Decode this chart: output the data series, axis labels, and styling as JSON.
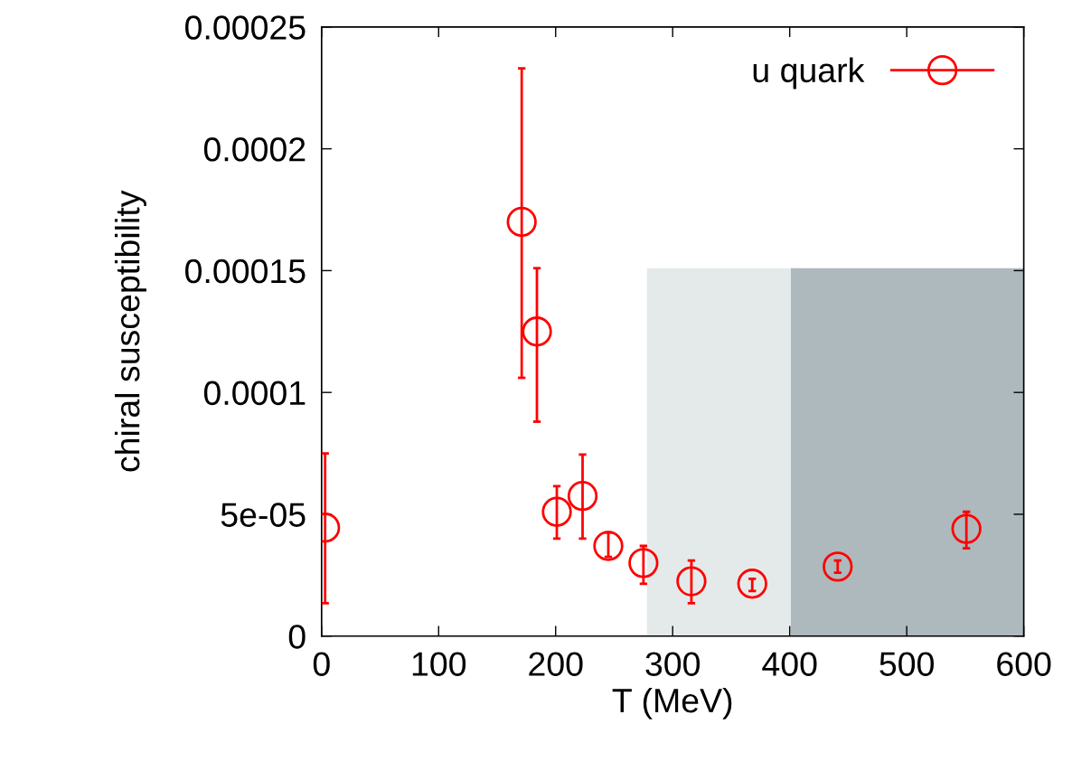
{
  "chart_data": {
    "type": "scatter",
    "xlabel": "T (MeV)",
    "ylabel": "chiral susceptibility",
    "xlim": [
      0,
      600
    ],
    "xticks": [
      0,
      100,
      200,
      300,
      400,
      500,
      600
    ],
    "ylim": [
      0,
      0.00025
    ],
    "yticks": [
      {
        "value": 0,
        "label": "0"
      },
      {
        "value": 5e-05,
        "label": "5e-05"
      },
      {
        "value": 0.0001,
        "label": "0.0001"
      },
      {
        "value": 0.00015,
        "label": "0.00015"
      },
      {
        "value": 0.0002,
        "label": "0.0002"
      },
      {
        "value": 0.00025,
        "label": "0.00025"
      }
    ],
    "grid": false,
    "legend": "top right",
    "series": [
      {
        "type": "area",
        "color": "#e4eaea",
        "x": [
          278,
          409
        ],
        "values": [
          0.000151,
          0.000151
        ]
      },
      {
        "type": "area",
        "color": "#aeb9bd",
        "x": [
          401,
          600
        ],
        "values": [
          0.000151,
          0.000151
        ]
      },
      {
        "name": "u quark",
        "color": "#ff0000",
        "marker": "circle",
        "x": [
          3,
          171,
          184,
          201,
          223,
          245,
          275,
          316,
          368,
          441,
          551
        ],
        "values": [
          4.45e-05,
          0.00017,
          0.000125,
          5.1e-05,
          5.75e-05,
          3.7e-05,
          3e-05,
          2.25e-05,
          2.15e-05,
          2.85e-05,
          4.4e-05
        ],
        "errors": [
          [
            1.35e-05,
            7.5e-05
          ],
          [
            0.000106,
            0.000233
          ],
          [
            8.8e-05,
            0.000151
          ],
          [
            4e-05,
            6.15e-05
          ],
          [
            4e-05,
            7.45e-05
          ],
          [
            3.25e-05,
            4.25e-05
          ],
          [
            2.15e-05,
            3.7e-05
          ],
          [
            1.35e-05,
            3.1e-05
          ],
          [
            1.85e-05,
            2.35e-05
          ],
          [
            2.6e-05,
            3.1e-05
          ],
          [
            3.6e-05,
            5.1e-05
          ]
        ]
      }
    ]
  }
}
